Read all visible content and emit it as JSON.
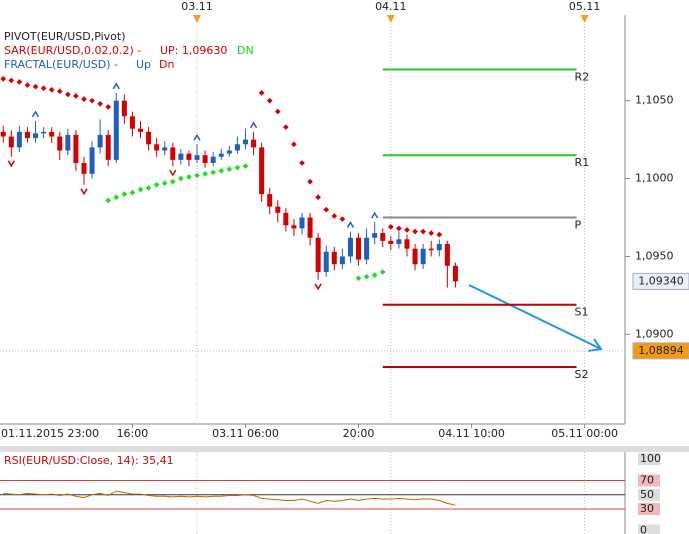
{
  "chart_data": {
    "type": "candlestick",
    "legend": {
      "pivot": "PIVOT(EUR/USD,Pivot)",
      "sar": "SAR(EUR/USD,0.02,0.2) -",
      "sar_up": "UP: 1,09630",
      "sar_dn": "DN",
      "fractal": "FRACTAL(EUR/USD) -",
      "fractal_up": "Up",
      "fractal_dn": "Dn"
    },
    "xlim": [
      0.6,
      78
    ],
    "xticks": [
      {
        "value": 0,
        "label": "01.11.2015 23:00"
      },
      {
        "value": 17,
        "label": "16:00"
      },
      {
        "value": 31,
        "label": "03.11 06:00"
      },
      {
        "value": 45,
        "label": "20:00"
      },
      {
        "value": 59,
        "label": "04.11 10:00"
      },
      {
        "value": 73,
        "label": "05.11 00:00"
      }
    ],
    "top_ticks": [
      {
        "value": 25,
        "label": "03.11"
      },
      {
        "value": 49,
        "label": "04.11"
      },
      {
        "value": 73,
        "label": "05.11"
      }
    ],
    "ylim": [
      1.0845,
      1.1105
    ],
    "yticks": [
      {
        "value": 1.09,
        "label": "1,0900"
      },
      {
        "value": 1.095,
        "label": "1,0950"
      },
      {
        "value": 1.1,
        "label": "1,1000"
      },
      {
        "value": 1.105,
        "label": "1,1050"
      }
    ],
    "up_color": "#1f5fbf",
    "down_color": "#d40000",
    "x": [
      1,
      2,
      3,
      4,
      5,
      6,
      7,
      8,
      9,
      10,
      11,
      12,
      13,
      14,
      15,
      16,
      17,
      18,
      19,
      20,
      21,
      22,
      23,
      24,
      25,
      26,
      27,
      28,
      29,
      30,
      31,
      32,
      33,
      34,
      35,
      36,
      37,
      38,
      39,
      40,
      41,
      42,
      43,
      44,
      45,
      46,
      47,
      48,
      49,
      50,
      51,
      52,
      53,
      54,
      55,
      56,
      57
    ],
    "open": [
      1.103,
      1.1027,
      1.102,
      1.103,
      1.1026,
      1.1029,
      1.103,
      1.1027,
      1.1018,
      1.1028,
      1.101,
      1.1003,
      1.102,
      1.1028,
      1.1012,
      1.105,
      1.104,
      1.1032,
      1.103,
      1.1022,
      1.1018,
      1.102,
      1.1012,
      1.1016,
      1.1012,
      1.1015,
      1.101,
      1.1014,
      1.1016,
      1.1018,
      1.1022,
      1.1025,
      1.102,
      1.099,
      1.0982,
      1.0978,
      1.097,
      1.0968,
      1.0975,
      1.0962,
      1.094,
      1.0953,
      1.0945,
      1.095,
      1.0962,
      1.0948,
      1.0962,
      1.0965,
      1.096,
      1.0958,
      1.0961,
      1.0955,
      1.0945,
      1.0955,
      1.0954,
      1.0958,
      1.0944
    ],
    "high": [
      1.1034,
      1.1031,
      1.1034,
      1.1033,
      1.1037,
      1.1033,
      1.1033,
      1.103,
      1.1032,
      1.1031,
      1.1014,
      1.1024,
      1.1038,
      1.1031,
      1.1055,
      1.1054,
      1.1043,
      1.1037,
      1.1033,
      1.1026,
      1.1024,
      1.1023,
      1.1019,
      1.1018,
      1.1022,
      1.1018,
      1.1017,
      1.1019,
      1.1021,
      1.1027,
      1.1032,
      1.103,
      1.1023,
      1.0994,
      1.0986,
      1.0981,
      1.0974,
      1.0978,
      1.0978,
      1.0965,
      1.0957,
      1.0956,
      1.0955,
      1.0966,
      1.0965,
      1.0968,
      1.0972,
      1.0968,
      1.0963,
      1.0966,
      1.0964,
      1.0958,
      1.0958,
      1.096,
      1.0961,
      1.096,
      1.0946
    ],
    "low": [
      1.1023,
      1.1014,
      1.1017,
      1.1023,
      1.1023,
      1.1026,
      1.1023,
      1.1012,
      1.1015,
      1.1005,
      1.0996,
      1.1,
      1.1016,
      1.1008,
      1.101,
      1.1035,
      1.1027,
      1.1026,
      1.1018,
      1.1014,
      1.1015,
      1.1008,
      1.1009,
      1.1008,
      1.101,
      1.1007,
      1.1008,
      1.1012,
      1.1014,
      1.1016,
      1.1019,
      1.1015,
      1.0985,
      1.0977,
      1.0972,
      1.0966,
      1.0963,
      1.0964,
      1.0957,
      1.0935,
      1.0937,
      1.0941,
      1.0942,
      1.0946,
      1.0944,
      1.0945,
      1.0958,
      1.0956,
      1.0954,
      1.0955,
      1.095,
      1.0941,
      1.0942,
      1.095,
      1.095,
      1.093,
      1.093
    ],
    "close": [
      1.1027,
      1.102,
      1.103,
      1.1026,
      1.1029,
      1.103,
      1.1027,
      1.1018,
      1.1028,
      1.101,
      1.1003,
      1.102,
      1.1028,
      1.1012,
      1.105,
      1.104,
      1.1032,
      1.103,
      1.1022,
      1.1018,
      1.102,
      1.1012,
      1.1016,
      1.1012,
      1.1015,
      1.101,
      1.1014,
      1.1016,
      1.1018,
      1.1022,
      1.1025,
      1.102,
      1.099,
      1.0982,
      1.0978,
      1.097,
      1.0968,
      1.0975,
      1.0962,
      1.094,
      1.0953,
      1.0945,
      1.095,
      1.0962,
      1.0948,
      1.0962,
      1.0965,
      1.096,
      1.0958,
      1.0961,
      1.0955,
      1.0945,
      1.0955,
      1.0954,
      1.0958,
      1.0944,
      1.0934
    ],
    "sar_dn": {
      "color": "#d40000",
      "x": [
        1,
        2,
        3,
        4,
        5,
        6,
        7,
        8,
        9,
        10,
        11,
        12,
        13,
        14,
        33,
        34,
        35,
        36,
        37,
        38,
        39,
        40,
        41,
        42,
        43,
        49,
        50,
        51,
        52,
        53,
        54,
        55
      ],
      "values": [
        1.1064,
        1.1063,
        1.1062,
        1.106,
        1.1059,
        1.1058,
        1.1057,
        1.1056,
        1.1054,
        1.1053,
        1.1051,
        1.105,
        1.1048,
        1.1046,
        1.1055,
        1.105,
        1.1043,
        1.1033,
        1.1022,
        1.101,
        1.0998,
        1.0988,
        1.098,
        1.0976,
        1.0974,
        1.0969,
        1.0968,
        1.0967,
        1.0966,
        1.0966,
        1.0965,
        1.0964
      ]
    },
    "sar_up": {
      "color": "#22dd22",
      "x": [
        14,
        15,
        16,
        17,
        18,
        19,
        20,
        21,
        22,
        23,
        24,
        25,
        26,
        27,
        28,
        29,
        30,
        31,
        45,
        46,
        47,
        48
      ],
      "values": [
        1.0986,
        1.0988,
        1.099,
        1.0991,
        1.0993,
        1.0994,
        1.0996,
        1.0997,
        1.0998,
        1.1,
        1.1001,
        1.1002,
        1.1003,
        1.1004,
        1.1005,
        1.1006,
        1.1007,
        1.1008,
        1.0936,
        1.0937,
        1.0938,
        1.094
      ]
    },
    "fractals_up": {
      "color": "#1f5fbf",
      "x": [
        5,
        15,
        25,
        32,
        44,
        47
      ],
      "values": [
        1.1037,
        1.1055,
        1.1022,
        1.103,
        1.0966,
        1.0972
      ]
    },
    "fractals_dn": {
      "color": "#d40000",
      "x": [
        2,
        11,
        22,
        40
      ],
      "values": [
        1.1014,
        1.0996,
        1.1008,
        1.0935
      ]
    },
    "pivots": {
      "x": [
        48,
        72
      ],
      "levels": [
        {
          "label": "R2",
          "value": 1.107,
          "color": "#22cc22"
        },
        {
          "label": "R1",
          "value": 1.1015,
          "color": "#22cc22"
        },
        {
          "label": "P",
          "value": 1.0975,
          "color": "#888888"
        },
        {
          "label": "S1",
          "value": 1.0919,
          "color": "#c00000"
        },
        {
          "label": "S2",
          "value": 1.0879,
          "color": "#c00000"
        }
      ]
    },
    "price_labels": [
      {
        "value": 1.0934,
        "label": "1,09340",
        "color": "#e8f0ff"
      },
      {
        "value": 1.08894,
        "label": "1,08894",
        "color": "#f39c12"
      }
    ],
    "rsi": {
      "title": "RSI(EUR/USD:Close, 14): 35,41",
      "ylim": [
        -5,
        110
      ],
      "yticks": [
        0,
        30,
        50,
        70,
        100
      ],
      "color": "#b36b00",
      "values": [
        52,
        51,
        50,
        52,
        51,
        50,
        51,
        49,
        51,
        48,
        46,
        50,
        52,
        49,
        55,
        53,
        51,
        51,
        49,
        48,
        48,
        47,
        48,
        47,
        48,
        47,
        48,
        48,
        49,
        49,
        50,
        49,
        45,
        44,
        43,
        42,
        42,
        44,
        41,
        38,
        42,
        41,
        42,
        44,
        42,
        44,
        45,
        44,
        44,
        45,
        44,
        43,
        44,
        44,
        42,
        38,
        35.41
      ]
    }
  }
}
